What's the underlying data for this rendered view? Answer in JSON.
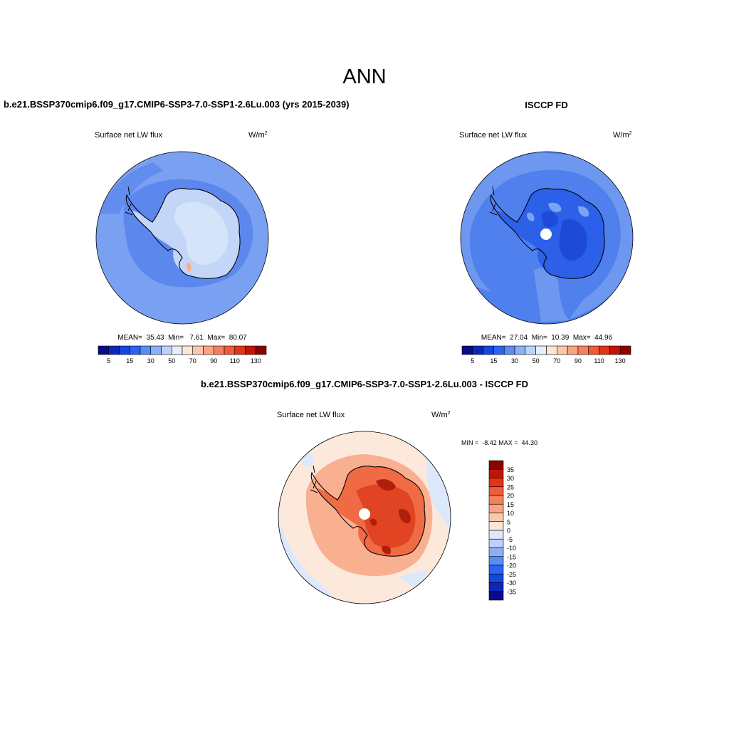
{
  "figure": {
    "title": "ANN"
  },
  "panels": [
    {
      "title": "b.e21.BSSP370cmip6.f09_g17.CMIP6-SSP3-7.0-SSP1-2.6Lu.003 (yrs 2015-2039)",
      "variable": "Surface net LW flux",
      "units_base": "W/m",
      "units_exp": "2",
      "stats": "MEAN=  35.43  Min=   7.61  Max=  80.07",
      "colorbar": {
        "tick_labels": [
          "5",
          "15",
          "30",
          "50",
          "70",
          "90",
          "110",
          "130"
        ],
        "colors": [
          "#0a0a8a",
          "#0d28b8",
          "#1446e0",
          "#2a64f0",
          "#5a8cf4",
          "#8cb0f6",
          "#bcd2f8",
          "#e6eefc",
          "#fde6d6",
          "#fcc8ac",
          "#f9a482",
          "#f6805e",
          "#f25a38",
          "#e23418",
          "#c01608",
          "#8a0404"
        ]
      },
      "map": {
        "ocean_color": "#7aa0f2",
        "ocean_near_color": "#5c88ee",
        "continent_color": "#c4d6f8",
        "interior_color": "#d6e4fa",
        "hotspot_color": "#f4b090"
      }
    },
    {
      "title": "ISCCP FD",
      "variable": "Surface net LW flux",
      "units_base": "W/m",
      "units_exp": "2",
      "stats": "MEAN=  27.04  Min=  10.39  Max=  44.96",
      "colorbar": {
        "tick_labels": [
          "5",
          "15",
          "30",
          "50",
          "70",
          "90",
          "110",
          "130"
        ],
        "colors": [
          "#0a0a8a",
          "#0d28b8",
          "#1446e0",
          "#2a64f0",
          "#5a8cf4",
          "#8cb0f6",
          "#bcd2f8",
          "#e6eefc",
          "#fde6d6",
          "#fcc8ac",
          "#f9a482",
          "#f6805e",
          "#f25a38",
          "#e23418",
          "#c01608",
          "#8a0404"
        ]
      },
      "map": {
        "ocean_color": "#4f80ee",
        "ocean_outer_color": "#6e98f0",
        "continent_color": "#2c60e8",
        "interior_color": "#1e4ad8",
        "light_patch_color": "#7aa4f2",
        "pole_hole_color": "#ffffff"
      }
    },
    {
      "title": "b.e21.BSSP370cmip6.f09_g17.CMIP6-SSP3-7.0-SSP1-2.6Lu.003 - ISCCP FD",
      "variable": "Surface net LW flux",
      "units_base": "W/m",
      "units_exp": "2",
      "minmax": "MIN =  -8.42 MAX =  44.30",
      "colorbar": {
        "tick_labels": [
          "35",
          "30",
          "25",
          "20",
          "15",
          "10",
          "5",
          "0",
          "-5",
          "-10",
          "-15",
          "-20",
          "-25",
          "-30",
          "-35"
        ],
        "colors": [
          "#8a0404",
          "#c01608",
          "#e23418",
          "#f25a38",
          "#f6805e",
          "#f9a482",
          "#fcc8ac",
          "#fde6d6",
          "#dce8fc",
          "#bcd2f8",
          "#8cb0f6",
          "#5a8cf4",
          "#2a64f0",
          "#1446e0",
          "#0d28b8",
          "#0a0a8a"
        ]
      },
      "map": {
        "ocean_color": "#fde9dc",
        "ocean_blue_color": "#dce8fc",
        "coast_ring_color": "#f9b090",
        "continent_color": "#f06a44",
        "interior_color": "#e04422",
        "dark_patch_color": "#b01e0c",
        "pole_hole_color": "#ffffff"
      }
    }
  ]
}
